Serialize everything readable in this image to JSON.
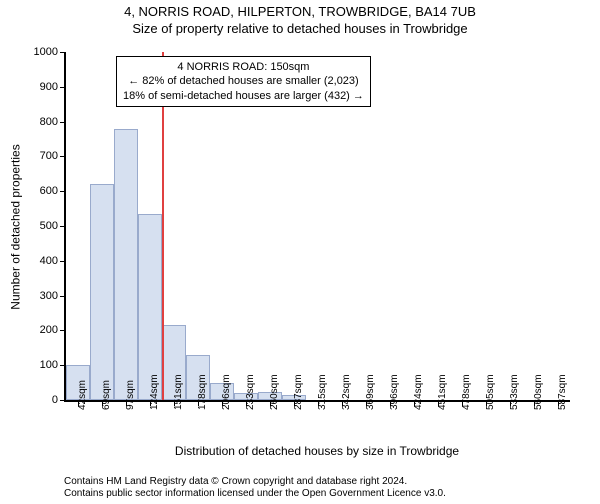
{
  "titles": {
    "line1": "4, NORRIS ROAD, HILPERTON, TROWBRIDGE, BA14 7UB",
    "line2": "Size of property relative to detached houses in Trowbridge"
  },
  "axes": {
    "ylabel": "Number of detached properties",
    "xlabel": "Distribution of detached houses by size in Trowbridge",
    "ylim": [
      0,
      1000
    ],
    "ytick_step": 100,
    "bar_fill": "#d6e0f0",
    "bar_stroke": "#99aacc",
    "tick_fontsize": 11,
    "label_fontsize": 12
  },
  "histogram": {
    "type": "histogram",
    "categories": [
      "42sqm",
      "69sqm",
      "97sqm",
      "124sqm",
      "151sqm",
      "178sqm",
      "206sqm",
      "233sqm",
      "260sqm",
      "287sqm",
      "315sqm",
      "342sqm",
      "369sqm",
      "396sqm",
      "424sqm",
      "451sqm",
      "478sqm",
      "505sqm",
      "533sqm",
      "560sqm",
      "587sqm"
    ],
    "values": [
      100,
      620,
      780,
      535,
      215,
      130,
      50,
      20,
      22,
      14,
      0,
      0,
      0,
      0,
      0,
      0,
      0,
      0,
      0,
      0,
      0
    ]
  },
  "marker": {
    "bin_index": 4,
    "color": "#e04040"
  },
  "annotation": {
    "line1": "4 NORRIS ROAD: 150sqm",
    "line2": "← 82% of detached houses are smaller (2,023)",
    "line3": "18% of semi-detached houses are larger (432) →"
  },
  "footer": {
    "line1": "Contains HM Land Registry data © Crown copyright and database right 2024.",
    "line2": "Contains public sector information licensed under the Open Government Licence v3.0."
  },
  "colors": {
    "background": "#ffffff",
    "axis": "#000000"
  }
}
